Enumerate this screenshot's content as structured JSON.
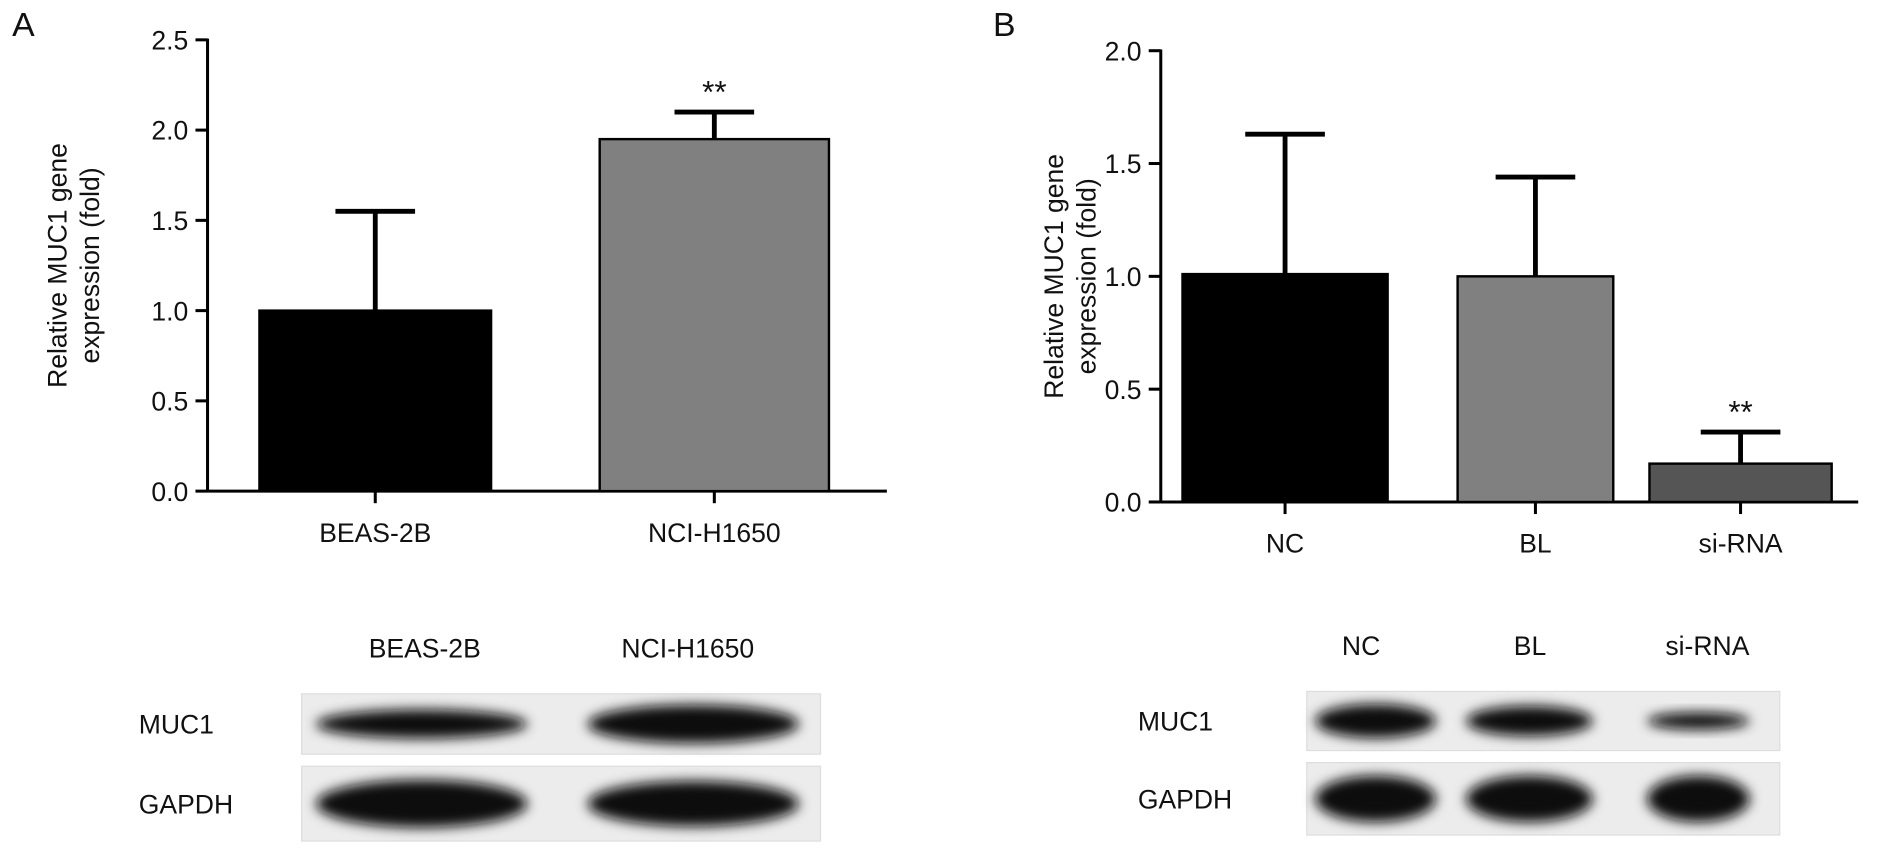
{
  "chart_data": [
    {
      "type": "bar",
      "panel": "A",
      "ylabel": [
        "Relative MUC1 gene",
        "expression  (fold)"
      ],
      "categories": [
        "BEAS-2B",
        "NCI-H1650"
      ],
      "values": [
        1.0,
        1.95
      ],
      "errors": [
        0.55,
        0.15
      ],
      "colors": [
        "#000000",
        "#808080"
      ],
      "significance": [
        null,
        "**"
      ],
      "ylim": [
        0,
        2.5
      ],
      "yticks": [
        {
          "value": 0,
          "label": "0.0"
        },
        {
          "value": 0.5,
          "label": "0.5"
        },
        {
          "value": 1,
          "label": "1.0"
        },
        {
          "value": 1.5,
          "label": "1.5"
        },
        {
          "value": 2,
          "label": "2.0"
        },
        {
          "value": 2.5,
          "label": "2.5"
        }
      ],
      "blot": {
        "lanes": [
          "BEAS-2B",
          "NCI-H1650"
        ],
        "rows": [
          "MUC1",
          "GAPDH"
        ]
      }
    },
    {
      "type": "bar",
      "panel": "B",
      "ylabel": [
        "Relative MUC1 gene",
        "expression  (fold)"
      ],
      "categories": [
        "NC",
        "BL",
        "si-RNA"
      ],
      "values": [
        1.01,
        1.0,
        0.17
      ],
      "errors": [
        0.62,
        0.44,
        0.14
      ],
      "colors": [
        "#000000",
        "#808080",
        "#555555"
      ],
      "significance": [
        null,
        null,
        "**"
      ],
      "ylim": [
        0,
        2.0
      ],
      "yticks": [
        {
          "value": 0,
          "label": "0.0"
        },
        {
          "value": 0.5,
          "label": "0.5"
        },
        {
          "value": 1,
          "label": "1.0"
        },
        {
          "value": 1.5,
          "label": "1.5"
        },
        {
          "value": 2,
          "label": "2.0"
        }
      ],
      "blot": {
        "lanes": [
          "NC",
          "BL",
          "si-RNA"
        ],
        "rows": [
          "MUC1",
          "GAPDH"
        ]
      }
    }
  ]
}
